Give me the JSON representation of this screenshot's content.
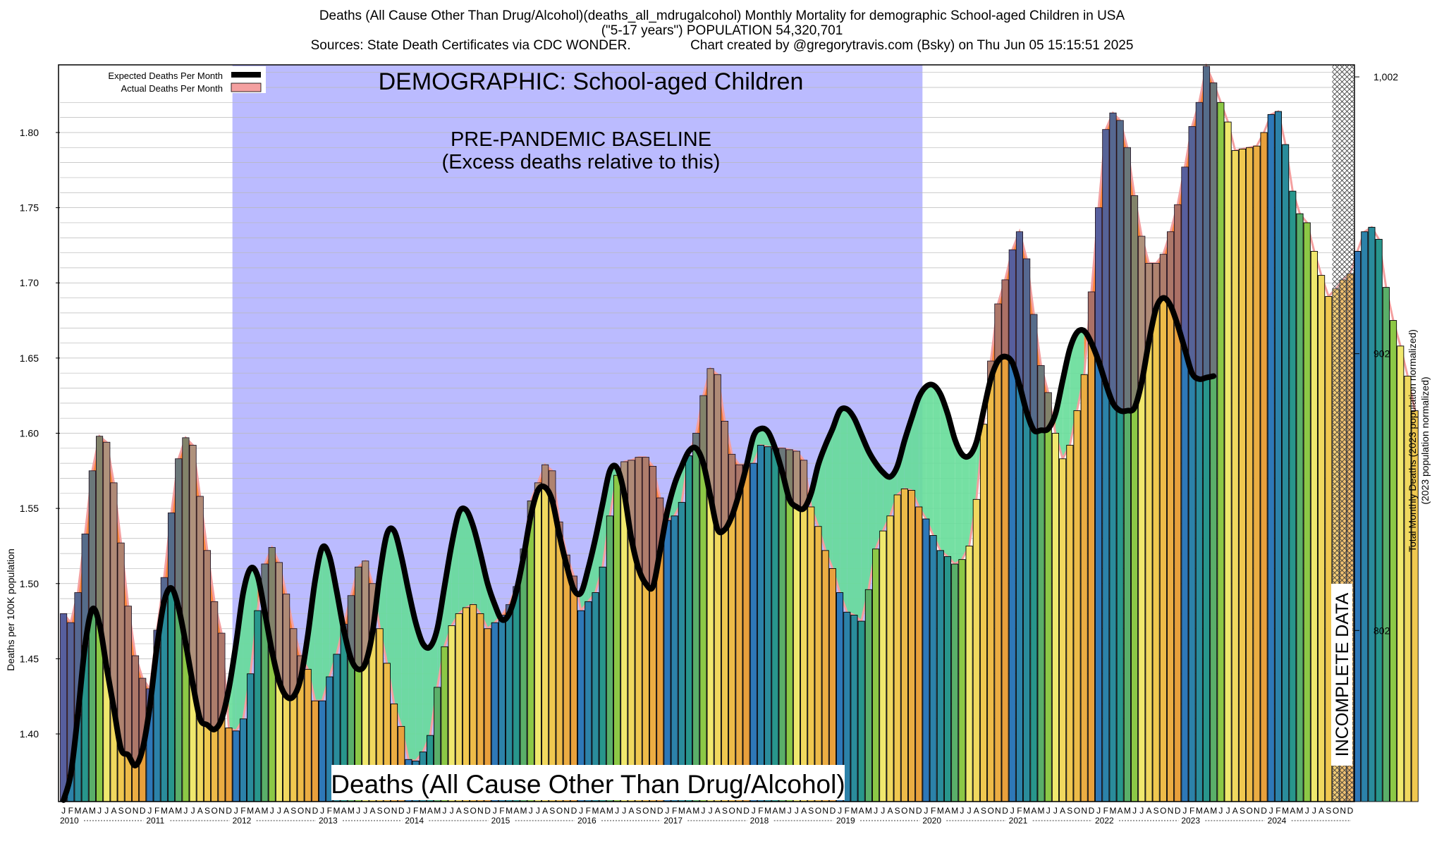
{
  "title": {
    "line1": "Deaths (All Cause Other Than Drug/Alcohol)(deaths_all_mdrugalcohol) Monthly Mortality for demographic School-aged Children in USA",
    "line2": "(\"5-17 years\") POPULATION 54,320,701",
    "line3": "Sources: State Death Certificates via CDC WONDER.                Chart created by @gregorytravis.com (Bsky) on Thu Jun 05 15:15:51 2025"
  },
  "labels": {
    "demographic": "DEMOGRAPHIC: School-aged Children",
    "baseline_line1": "PRE-PANDEMIC BASELINE",
    "baseline_line2": "(Excess deaths relative to this)",
    "deaths_box": "Deaths (All Cause Other Than Drug/Alcohol)",
    "incomplete": "INCOMPLETE DATA",
    "legend_expected": "Expected Deaths Per Month",
    "legend_actual": "Actual Deaths Per Month"
  },
  "colors": {
    "baseline_region": "#bbbbff",
    "excess_fill": "#ff7a2a",
    "deficit_fill": "#66dd99",
    "expected_line": "#000000",
    "actual_band": "#f4a0a0"
  },
  "chart_data": {
    "type": "bar",
    "title": "Deaths (All Cause Other Than Drug/Alcohol)(deaths_all_mdrugalcohol) Monthly Mortality for demographic School-aged Children in USA",
    "ylabel": "Deaths per 100K population",
    "ylabel_right": "Total Monthly Deaths (2023 population normalized)",
    "ylim": [
      1.355,
      1.845
    ],
    "y_ticks": [
      1.4,
      1.45,
      1.5,
      1.55,
      1.6,
      1.65,
      1.7,
      1.75,
      1.8
    ],
    "y_tick_labels": [
      "1.40",
      "1.45",
      "1.50",
      "1.55",
      "1.60",
      "1.65",
      "1.70",
      "1.75",
      "1.80"
    ],
    "right_ticks": [
      {
        "value": 802,
        "y": 1.4688
      },
      {
        "value": 902,
        "y": 1.6529
      },
      {
        "value": 1002,
        "y": 1.837
      }
    ],
    "right_tick_labels": [
      "802",
      "902",
      "1,002"
    ],
    "month_letters": [
      "J",
      "F",
      "M",
      "A",
      "M",
      "J",
      "J",
      "A",
      "S",
      "O",
      "N",
      "D"
    ],
    "years": [
      "2010",
      "2011",
      "2012",
      "2013",
      "2014",
      "2015",
      "2016",
      "2017",
      "2018",
      "2019",
      "2020",
      "2021",
      "2022",
      "2023",
      "2024"
    ],
    "baseline_period": [
      "2012-01",
      "2019-12"
    ],
    "incomplete_from": "2024-10",
    "grid": true,
    "legend_position": "top-left",
    "series": [
      {
        "name": "Actual Deaths Per Month",
        "values": [
          1.48,
          1.474,
          1.494,
          1.533,
          1.575,
          1.598,
          1.594,
          1.567,
          1.527,
          1.485,
          1.452,
          1.437,
          1.43,
          1.469,
          1.504,
          1.547,
          1.583,
          1.597,
          1.592,
          1.558,
          1.522,
          1.488,
          1.467,
          1.404,
          1.402,
          1.41,
          1.44,
          1.482,
          1.513,
          1.524,
          1.514,
          1.493,
          1.47,
          1.452,
          1.443,
          1.422,
          1.422,
          1.438,
          1.453,
          1.473,
          1.492,
          1.511,
          1.515,
          1.5,
          1.47,
          1.447,
          1.42,
          1.405,
          1.383,
          1.382,
          1.388,
          1.399,
          1.431,
          1.458,
          1.472,
          1.48,
          1.484,
          1.486,
          1.48,
          1.47,
          1.474,
          1.479,
          1.486,
          1.498,
          1.523,
          1.555,
          1.567,
          1.579,
          1.575,
          1.541,
          1.519,
          1.505,
          1.482,
          1.488,
          1.494,
          1.511,
          1.545,
          1.572,
          1.581,
          1.582,
          1.584,
          1.584,
          1.578,
          1.557,
          1.542,
          1.545,
          1.554,
          1.585,
          1.6,
          1.625,
          1.643,
          1.639,
          1.608,
          1.586,
          1.579,
          1.579,
          1.58,
          1.592,
          1.591,
          1.59,
          1.59,
          1.589,
          1.588,
          1.582,
          1.551,
          1.538,
          1.522,
          1.51,
          1.494,
          1.481,
          1.479,
          1.475,
          1.496,
          1.523,
          1.535,
          1.545,
          1.559,
          1.563,
          1.562,
          1.551,
          1.543,
          1.532,
          1.522,
          1.518,
          1.513,
          1.516,
          1.525,
          1.556,
          1.606,
          1.648,
          1.686,
          1.702,
          1.722,
          1.734,
          1.716,
          1.679,
          1.645,
          1.627,
          1.6,
          1.583,
          1.592,
          1.615,
          1.639,
          1.694,
          1.75,
          1.802,
          1.813,
          1.808,
          1.79,
          1.758,
          1.731,
          1.713,
          1.713,
          1.719,
          1.734,
          1.752,
          1.777,
          1.804,
          1.82,
          1.844,
          1.833,
          1.82,
          1.807,
          1.788,
          1.789,
          1.79,
          1.791,
          1.8,
          1.812,
          1.814,
          1.792,
          1.761,
          1.746,
          1.74,
          1.721,
          1.705,
          1.691,
          1.696,
          1.702,
          1.706,
          1.721,
          1.734,
          1.737,
          1.729,
          1.697,
          1.675,
          1.658,
          1.638,
          1.615
        ]
      },
      {
        "name": "Expected Deaths Per Month",
        "values": [
          1.356,
          1.373,
          1.413,
          1.459,
          1.483,
          1.473,
          1.444,
          1.417,
          1.39,
          1.386,
          1.379,
          1.39,
          1.418,
          1.458,
          1.488,
          1.497,
          1.484,
          1.46,
          1.433,
          1.41,
          1.406,
          1.403,
          1.41,
          1.43,
          1.46,
          1.494,
          1.51,
          1.505,
          1.481,
          1.455,
          1.435,
          1.425,
          1.425,
          1.437,
          1.466,
          1.502,
          1.524,
          1.518,
          1.495,
          1.469,
          1.45,
          1.443,
          1.447,
          1.468,
          1.506,
          1.533,
          1.535,
          1.518,
          1.495,
          1.474,
          1.46,
          1.458,
          1.47,
          1.498,
          1.526,
          1.547,
          1.549,
          1.538,
          1.52,
          1.5,
          1.486,
          1.476,
          1.48,
          1.495,
          1.518,
          1.545,
          1.562,
          1.564,
          1.555,
          1.532,
          1.512,
          1.496,
          1.494,
          1.51,
          1.53,
          1.553,
          1.575,
          1.577,
          1.56,
          1.53,
          1.51,
          1.5,
          1.498,
          1.522,
          1.548,
          1.566,
          1.578,
          1.588,
          1.59,
          1.58,
          1.558,
          1.536,
          1.536,
          1.545,
          1.56,
          1.578,
          1.598,
          1.603,
          1.601,
          1.59,
          1.574,
          1.556,
          1.551,
          1.55,
          1.56,
          1.579,
          1.592,
          1.603,
          1.615,
          1.616,
          1.61,
          1.599,
          1.588,
          1.58,
          1.574,
          1.571,
          1.578,
          1.595,
          1.61,
          1.624,
          1.631,
          1.632,
          1.626,
          1.613,
          1.596,
          1.586,
          1.585,
          1.594,
          1.615,
          1.636,
          1.648,
          1.651,
          1.647,
          1.632,
          1.614,
          1.602,
          1.602,
          1.603,
          1.613,
          1.635,
          1.656,
          1.667,
          1.668,
          1.66,
          1.648,
          1.633,
          1.62,
          1.615,
          1.615,
          1.617,
          1.634,
          1.661,
          1.683,
          1.69,
          1.685,
          1.672,
          1.656,
          1.64,
          1.636,
          1.637,
          1.638
        ]
      }
    ]
  }
}
